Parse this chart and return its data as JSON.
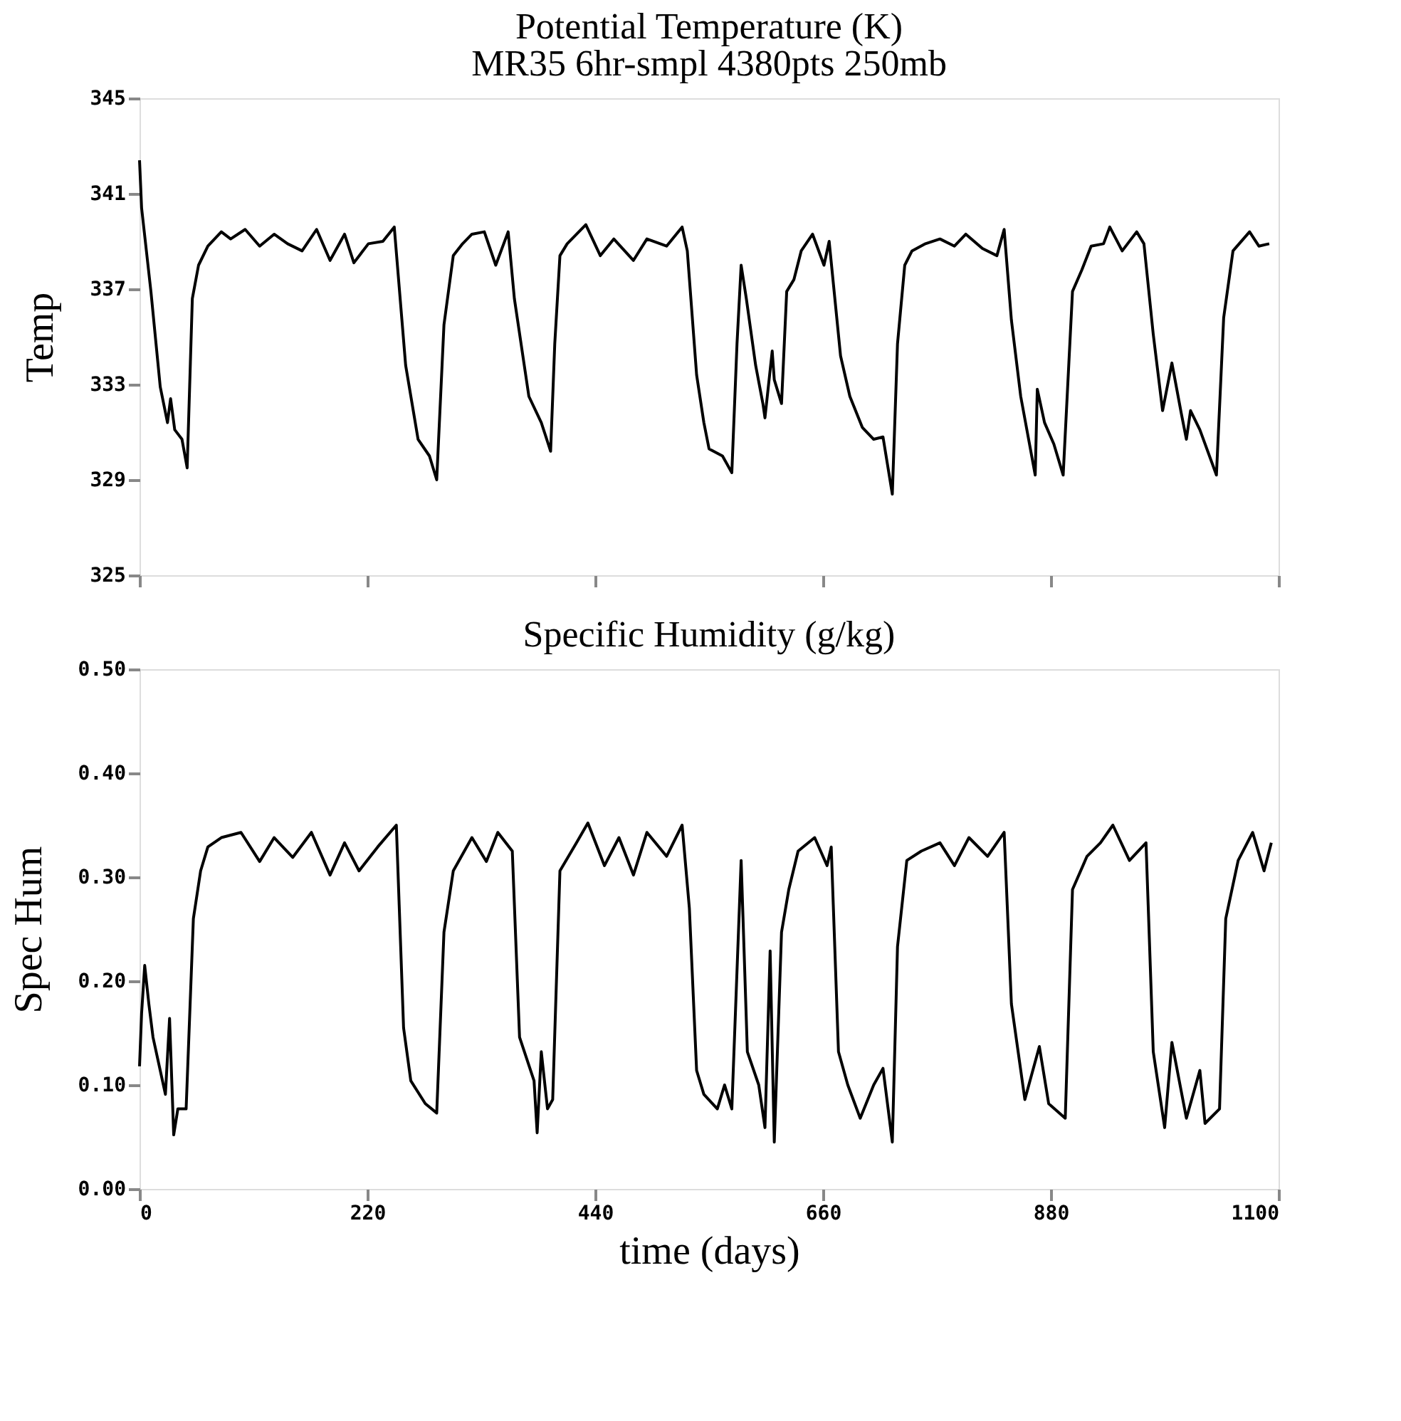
{
  "chart_data": [
    {
      "type": "line",
      "title": "Potential Temperature (K)",
      "subtitle": "MR35  6hr-smpl  4380pts  250mb",
      "ylabel": "Temp",
      "x": [
        0,
        2,
        11,
        20,
        27,
        30,
        34,
        41,
        46,
        51,
        57,
        66,
        79,
        88,
        102,
        116,
        130,
        143,
        157,
        171,
        184,
        198,
        207,
        221,
        235,
        246,
        257,
        269,
        280,
        287,
        294,
        303,
        312,
        321,
        333,
        344,
        356,
        362,
        376,
        388,
        397,
        401,
        406,
        413,
        431,
        445,
        458,
        477,
        490,
        509,
        524,
        529,
        538,
        545,
        550,
        563,
        572,
        577,
        581,
        586,
        595,
        602,
        604,
        611,
        613,
        620,
        625,
        632,
        639,
        650,
        661,
        666,
        677,
        686,
        698,
        709,
        718,
        727,
        732,
        739,
        746,
        759,
        773,
        787,
        798,
        814,
        828,
        835,
        842,
        851,
        865,
        867,
        874,
        883,
        892,
        901,
        910,
        919,
        931,
        937,
        949,
        963,
        970,
        979,
        988,
        997,
        1006,
        1011,
        1015,
        1024,
        1040,
        1047,
        1056,
        1072,
        1081,
        1091
      ],
      "series": [
        {
          "color": "#000000",
          "values": [
            342.4,
            340.4,
            336.9,
            332.9,
            331.4,
            332.4,
            331.1,
            330.7,
            329.5,
            336.6,
            338.0,
            338.8,
            339.4,
            339.1,
            339.5,
            338.8,
            339.3,
            338.9,
            338.6,
            339.5,
            338.2,
            339.3,
            338.1,
            338.9,
            339.0,
            339.6,
            333.8,
            330.7,
            330.0,
            329.0,
            335.5,
            338.4,
            338.9,
            339.3,
            339.4,
            338.0,
            339.4,
            336.6,
            332.5,
            331.4,
            330.2,
            334.7,
            338.4,
            338.9,
            339.7,
            338.4,
            339.1,
            338.2,
            339.1,
            338.8,
            339.6,
            338.6,
            333.4,
            331.4,
            330.3,
            330.0,
            329.3,
            334.7,
            338.0,
            336.6,
            333.8,
            332.2,
            331.6,
            334.4,
            333.2,
            332.2,
            336.9,
            337.4,
            338.6,
            339.3,
            338.0,
            339.0,
            334.2,
            332.5,
            331.2,
            330.7,
            330.8,
            328.4,
            334.7,
            338.0,
            338.6,
            338.9,
            339.1,
            338.8,
            339.3,
            338.7,
            338.4,
            339.5,
            335.7,
            332.5,
            329.2,
            332.8,
            331.4,
            330.5,
            329.2,
            336.9,
            337.8,
            338.8,
            338.9,
            339.6,
            338.6,
            339.4,
            338.9,
            335.1,
            331.9,
            333.9,
            331.8,
            330.7,
            331.9,
            331.1,
            329.2,
            335.8,
            338.6,
            339.4,
            338.8,
            338.9
          ]
        }
      ],
      "xlim": [
        0,
        1100
      ],
      "xticks": [
        0,
        220,
        440,
        660,
        880,
        1100
      ],
      "ylim": [
        325,
        345
      ],
      "yticks": [
        325,
        329,
        333,
        337,
        341,
        345
      ],
      "tick_labels": "y"
    },
    {
      "type": "line",
      "title": "Specific Humidity (g/kg)",
      "xlabel": "time (days)",
      "ylabel": "Spec Hum",
      "x": [
        0,
        2,
        5,
        9,
        13,
        25,
        29,
        33,
        37,
        45,
        52,
        59,
        66,
        79,
        98,
        116,
        130,
        148,
        166,
        184,
        198,
        212,
        230,
        248,
        255,
        262,
        276,
        287,
        294,
        303,
        321,
        335,
        346,
        360,
        367,
        381,
        384,
        388,
        394,
        399,
        406,
        422,
        433,
        449,
        463,
        477,
        490,
        509,
        524,
        531,
        538,
        545,
        558,
        565,
        572,
        581,
        587,
        598,
        604,
        609,
        613,
        620,
        627,
        636,
        652,
        664,
        668,
        675,
        684,
        696,
        709,
        718,
        727,
        732,
        741,
        755,
        773,
        787,
        801,
        819,
        835,
        842,
        855,
        869,
        878,
        894,
        901,
        915,
        928,
        940,
        956,
        972,
        979,
        990,
        997,
        1011,
        1024,
        1029,
        1043,
        1049,
        1061,
        1075,
        1086,
        1093
      ],
      "series": [
        {
          "color": "#000000",
          "values": [
            0.118,
            0.169,
            0.215,
            0.178,
            0.146,
            0.091,
            0.164,
            0.052,
            0.077,
            0.077,
            0.26,
            0.306,
            0.329,
            0.338,
            0.343,
            0.315,
            0.338,
            0.319,
            0.343,
            0.302,
            0.333,
            0.306,
            0.329,
            0.35,
            0.155,
            0.104,
            0.082,
            0.073,
            0.247,
            0.306,
            0.338,
            0.315,
            0.343,
            0.325,
            0.146,
            0.104,
            0.054,
            0.132,
            0.077,
            0.086,
            0.306,
            0.333,
            0.352,
            0.311,
            0.338,
            0.302,
            0.343,
            0.32,
            0.35,
            0.27,
            0.114,
            0.091,
            0.077,
            0.1,
            0.077,
            0.316,
            0.132,
            0.1,
            0.059,
            0.229,
            0.045,
            0.247,
            0.288,
            0.325,
            0.338,
            0.311,
            0.329,
            0.132,
            0.1,
            0.068,
            0.1,
            0.116,
            0.045,
            0.233,
            0.316,
            0.325,
            0.333,
            0.311,
            0.338,
            0.32,
            0.343,
            0.178,
            0.086,
            0.137,
            0.082,
            0.068,
            0.288,
            0.32,
            0.333,
            0.35,
            0.316,
            0.333,
            0.132,
            0.059,
            0.141,
            0.068,
            0.114,
            0.063,
            0.077,
            0.26,
            0.316,
            0.343,
            0.306,
            0.333
          ]
        }
      ],
      "xlim": [
        0,
        1100
      ],
      "xticks": [
        {
          "value": 0,
          "label": "0"
        },
        220,
        440,
        660,
        880,
        {
          "value": 1100,
          "label": "1100"
        }
      ],
      "ylim": [
        0,
        0.5
      ],
      "yticks": [
        {
          "value": 0,
          "label": "0.00"
        },
        {
          "value": 0.1,
          "label": "0.10"
        },
        {
          "value": 0.2,
          "label": "0.20"
        },
        {
          "value": 0.3,
          "label": "0.30"
        },
        {
          "value": 0.4,
          "label": "0.40"
        },
        {
          "value": 0.5,
          "label": "0.50"
        }
      ]
    }
  ]
}
